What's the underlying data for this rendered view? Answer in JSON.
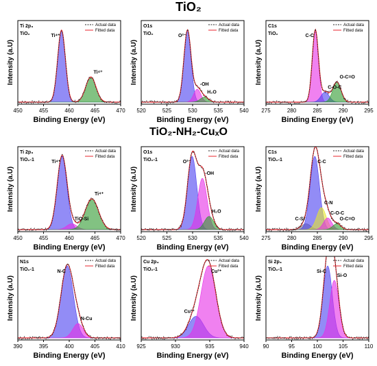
{
  "sections": [
    {
      "title": "TiO₂"
    },
    {
      "title": "TiO₂-NH₂-CuₓO"
    }
  ],
  "chart_data": [
    {
      "type": "area",
      "panel_label": "Ti 2p₃",
      "sample": "TiO₂",
      "xlabel": "Binding Energy (eV)",
      "ylabel": "Intensity (a.U)",
      "xlim": [
        450,
        470
      ],
      "xticks": [
        450,
        455,
        460,
        465,
        470
      ],
      "legend": [
        "Actual data",
        "Fitted data"
      ],
      "legend_position": "top-right",
      "peaks": [
        {
          "center": 458.5,
          "height": 1.0,
          "width": 0.75,
          "color": "#4a3ff0",
          "label": "Ti⁴⁺"
        },
        {
          "center": 464.2,
          "height": 0.35,
          "width": 1.0,
          "color": "#2e9a2e",
          "label": "Ti⁴⁺"
        }
      ]
    },
    {
      "type": "area",
      "panel_label": "O1s",
      "sample": "TiO₂",
      "xlabel": "Binding Energy (eV)",
      "ylabel": "Intensity (a.U)",
      "xlim": [
        520,
        540
      ],
      "xticks": [
        520,
        525,
        530,
        535,
        540
      ],
      "legend": [
        "Actual data",
        "Fitted data"
      ],
      "legend_position": "top-right",
      "peaks": [
        {
          "center": 529.0,
          "height": 1.0,
          "width": 0.7,
          "color": "#4a3ff0",
          "label": "O²⁻"
        },
        {
          "center": 530.9,
          "height": 0.18,
          "width": 0.7,
          "color": "#e62de6",
          "label": "-OH"
        },
        {
          "center": 532.3,
          "height": 0.07,
          "width": 0.8,
          "color": "#2e9a2e",
          "label": "H₂O"
        }
      ]
    },
    {
      "type": "area",
      "panel_label": "C1s",
      "sample": "TiO₂",
      "xlabel": "Binding Energy (eV)",
      "ylabel": "Intensity (a.U)",
      "xlim": [
        275,
        295
      ],
      "xticks": [
        275,
        280,
        285,
        290,
        295
      ],
      "legend": [
        "Actual data",
        "Fitted data"
      ],
      "legend_position": "top-right",
      "peaks": [
        {
          "center": 284.6,
          "height": 1.0,
          "width": 0.6,
          "color": "#e62de6",
          "label": "C-C"
        },
        {
          "center": 286.5,
          "height": 0.14,
          "width": 0.8,
          "color": "#4a3ff0",
          "label": "C-O-C"
        },
        {
          "center": 288.8,
          "height": 0.28,
          "width": 0.8,
          "color": "#2e9a2e",
          "label": "O-C=O"
        }
      ]
    },
    {
      "type": "area",
      "panel_label": "Ti 2p₃",
      "sample": "TiO₂-1",
      "xlabel": "Binding Energy (eV)",
      "ylabel": "Intensity (a.U)",
      "xlim": [
        450,
        470
      ],
      "xticks": [
        450,
        455,
        460,
        465,
        470
      ],
      "legend": [
        "Actual data",
        "Fitted data"
      ],
      "legend_position": "top-right",
      "peaks": [
        {
          "center": 458.6,
          "height": 1.0,
          "width": 0.95,
          "color": "#4a3ff0",
          "label": "Ti⁴⁺"
        },
        {
          "center": 460.5,
          "height": 0.08,
          "width": 1.0,
          "color": "#e62de6",
          "label": "TiO-Si"
        },
        {
          "center": 464.4,
          "height": 0.42,
          "width": 1.3,
          "color": "#2e9a2e",
          "label": "Ti⁴⁺"
        }
      ]
    },
    {
      "type": "area",
      "panel_label": "O1s",
      "sample": "TiO₂-1",
      "xlabel": "Binding Energy (eV)",
      "ylabel": "Intensity (a.U)",
      "xlim": [
        520,
        540
      ],
      "xticks": [
        520,
        525,
        530,
        535,
        540
      ],
      "legend": [
        "Actual data",
        "Fitted data"
      ],
      "legend_position": "top-right",
      "peaks": [
        {
          "center": 529.9,
          "height": 1.0,
          "width": 0.9,
          "color": "#4a3ff0",
          "label": "O²⁻"
        },
        {
          "center": 531.9,
          "height": 0.7,
          "width": 0.9,
          "color": "#e62de6",
          "label": "-OH"
        },
        {
          "center": 533.2,
          "height": 0.18,
          "width": 0.9,
          "color": "#2e9a2e",
          "label": "H₂O"
        }
      ]
    },
    {
      "type": "area",
      "panel_label": "C1s",
      "sample": "TiO₂-1",
      "xlabel": "Binding Energy (eV)",
      "ylabel": "Intensity (a.U)",
      "xlim": [
        275,
        295
      ],
      "xticks": [
        275,
        280,
        285,
        290,
        295
      ],
      "legend": [
        "Actual data",
        "Fitted data"
      ],
      "legend_position": "top-right",
      "peaks": [
        {
          "center": 282.8,
          "height": 0.08,
          "width": 0.9,
          "color": "#7a7a7a",
          "label": "C-Si"
        },
        {
          "center": 284.5,
          "height": 1.0,
          "width": 0.9,
          "color": "#4a3ff0",
          "label": "C-C"
        },
        {
          "center": 285.8,
          "height": 0.3,
          "width": 0.9,
          "color": "#e6e62d",
          "label": "C-N"
        },
        {
          "center": 287.0,
          "height": 0.16,
          "width": 0.8,
          "color": "#e62de6",
          "label": "C-O-C"
        },
        {
          "center": 288.8,
          "height": 0.08,
          "width": 0.8,
          "color": "#2e9a2e",
          "label": "O-C=O"
        }
      ]
    },
    {
      "type": "area",
      "panel_label": "N1s",
      "sample": "TiO₂-1",
      "xlabel": "Binding Energy (eV)",
      "ylabel": "Intensity (a.U)",
      "xlim": [
        390,
        410
      ],
      "xticks": [
        390,
        395,
        400,
        405,
        410
      ],
      "legend": [
        "Actual data",
        "Fitted data"
      ],
      "legend_position": "top-right",
      "peaks": [
        {
          "center": 399.6,
          "height": 1.0,
          "width": 1.2,
          "color": "#4a3ff0",
          "label": "N-C"
        },
        {
          "center": 401.7,
          "height": 0.2,
          "width": 1.0,
          "color": "#e62de6",
          "label": "N-Cu"
        }
      ]
    },
    {
      "type": "area",
      "panel_label": "Cu 2p₃",
      "sample": "TiO₂-1",
      "xlabel": "Binding Energy (eV)",
      "ylabel": "Intensity (a.U)",
      "xlim": [
        925,
        940
      ],
      "xticks": [
        925,
        930,
        935,
        940
      ],
      "legend": [
        "Actual data",
        "Fitted data"
      ],
      "legend_position": "top-right",
      "peaks": [
        {
          "center": 933.0,
          "height": 0.3,
          "width": 1.1,
          "color": "#4a3ff0",
          "label": "Cu¹⁺"
        },
        {
          "center": 934.8,
          "height": 1.0,
          "width": 1.1,
          "color": "#e62de6",
          "label": "Cu²⁺"
        }
      ]
    },
    {
      "type": "area",
      "panel_label": "Si 2p₃",
      "sample": "TiO₂-1",
      "xlabel": "Binding Energy (eV)",
      "ylabel": "Intensity (a.U)",
      "xlim": [
        90,
        110
      ],
      "xticks": [
        90,
        95,
        100,
        105,
        110
      ],
      "legend": [
        "Actual data",
        "Fitted data"
      ],
      "legend_position": "top-right",
      "peaks": [
        {
          "center": 102.0,
          "height": 1.0,
          "width": 0.9,
          "color": "#4a3ff0",
          "label": "Si-C"
        },
        {
          "center": 103.3,
          "height": 0.8,
          "width": 0.9,
          "color": "#e62de6",
          "label": "Si-O"
        }
      ]
    }
  ]
}
